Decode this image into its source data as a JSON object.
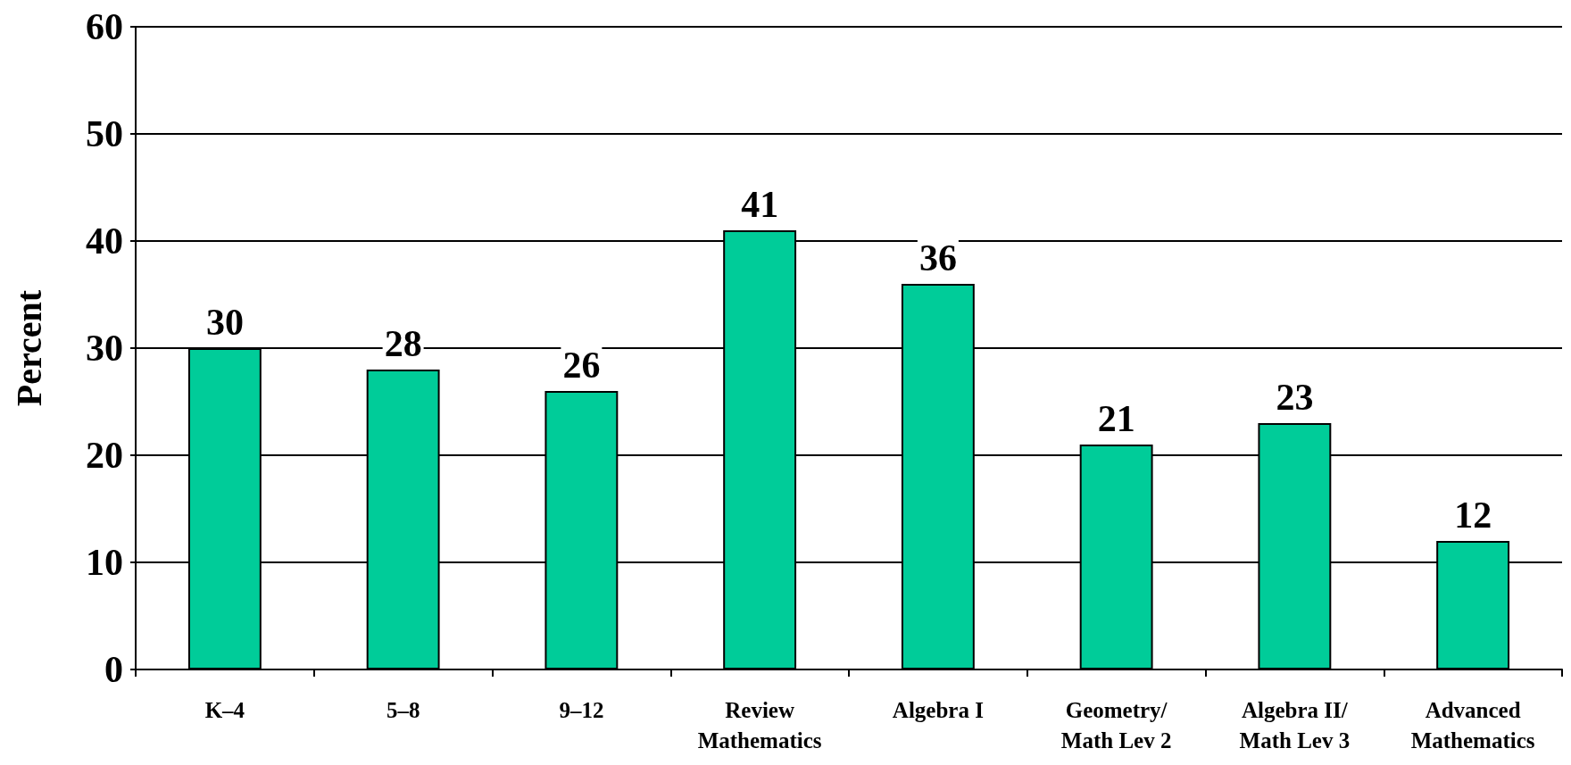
{
  "chart_data": {
    "type": "bar",
    "ylabel": "Percent",
    "categories": [
      "K–4",
      "5–8",
      "9–12",
      "Review\nMathematics",
      "Algebra I",
      "Geometry/\nMath Lev 2",
      "Algebra II/\nMath Lev 3",
      "Advanced\nMathematics"
    ],
    "values": [
      30,
      28,
      26,
      41,
      36,
      21,
      23,
      12
    ],
    "color": "#00cc99",
    "ylim": [
      0,
      60
    ],
    "yticks": [
      0,
      10,
      20,
      30,
      40,
      50,
      60
    ],
    "grid": "y",
    "data_labels": true
  }
}
